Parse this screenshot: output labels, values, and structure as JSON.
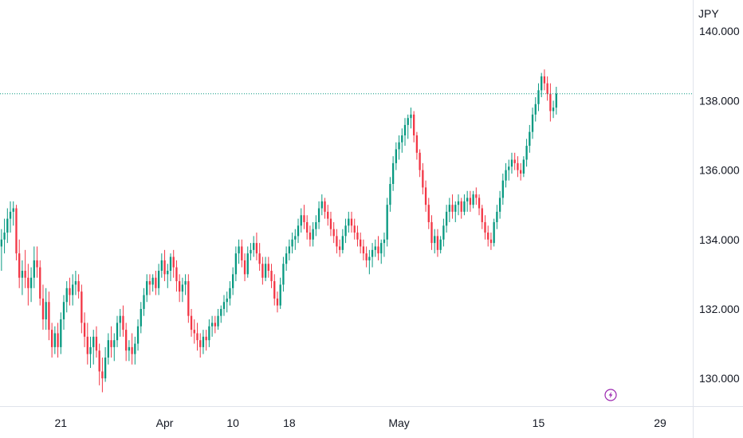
{
  "chart_data": {
    "type": "candlestick",
    "currency_label": "JPY",
    "y_ticks": [
      "140.000",
      "138.000",
      "136.000",
      "134.000",
      "132.000",
      "130.000"
    ],
    "y_tick_values": [
      140,
      138,
      136,
      134,
      132,
      130
    ],
    "ylim": [
      129.2,
      140.9
    ],
    "x_ticks": [
      "21",
      "Apr",
      "10",
      "18",
      "May",
      "15",
      "29"
    ],
    "x_tick_index": [
      20,
      55,
      78,
      97,
      134,
      181,
      222
    ],
    "x_index_range": [
      -0.5,
      233
    ],
    "last_price": 138.2,
    "grid": false,
    "colors": {
      "up": "#26a69a",
      "up_body": "#089981",
      "down": "#f23645",
      "last_price_line": "#089981",
      "axis_text": "#131722",
      "event_icon": "#9c27b0"
    },
    "candles": [
      [
        133.8,
        134.3,
        133.1,
        134.0
      ],
      [
        134.0,
        134.6,
        133.6,
        134.2
      ],
      [
        134.2,
        134.9,
        133.9,
        134.6
      ],
      [
        134.6,
        135.1,
        134.2,
        134.8
      ],
      [
        134.8,
        135.1,
        134.4,
        134.9
      ],
      [
        134.9,
        135.0,
        133.4,
        133.6
      ],
      [
        133.6,
        134.0,
        132.6,
        132.9
      ],
      [
        132.9,
        133.4,
        132.4,
        133.1
      ],
      [
        133.1,
        133.7,
        132.6,
        132.9
      ],
      [
        132.9,
        133.3,
        132.1,
        132.6
      ],
      [
        132.6,
        133.2,
        132.2,
        132.9
      ],
      [
        132.9,
        133.8,
        132.6,
        133.4
      ],
      [
        133.4,
        133.8,
        132.9,
        133.2
      ],
      [
        133.2,
        133.4,
        132.1,
        132.3
      ],
      [
        132.3,
        132.7,
        131.4,
        131.7
      ],
      [
        131.7,
        132.6,
        131.4,
        132.2
      ],
      [
        132.2,
        132.5,
        131.1,
        131.4
      ],
      [
        131.4,
        131.6,
        130.6,
        130.9
      ],
      [
        130.9,
        131.5,
        130.7,
        131.3
      ],
      [
        131.3,
        131.6,
        130.6,
        130.9
      ],
      [
        130.9,
        131.9,
        130.7,
        131.7
      ],
      [
        131.7,
        132.4,
        131.4,
        132.2
      ],
      [
        132.2,
        132.8,
        131.9,
        132.6
      ],
      [
        132.6,
        132.9,
        132.1,
        132.4
      ],
      [
        132.4,
        133.0,
        132.1,
        132.7
      ],
      [
        132.7,
        133.1,
        132.4,
        132.8
      ],
      [
        132.8,
        133.0,
        132.3,
        132.5
      ],
      [
        132.5,
        132.7,
        131.3,
        131.6
      ],
      [
        131.6,
        131.9,
        130.9,
        131.2
      ],
      [
        131.2,
        131.6,
        130.4,
        130.7
      ],
      [
        130.7,
        131.2,
        130.3,
        130.9
      ],
      [
        130.9,
        131.4,
        130.4,
        131.2
      ],
      [
        131.2,
        131.5,
        130.6,
        130.8
      ],
      [
        130.8,
        131.0,
        129.8,
        130.2
      ],
      [
        130.2,
        130.6,
        129.6,
        130.0
      ],
      [
        130.0,
        130.9,
        129.9,
        130.6
      ],
      [
        130.6,
        131.3,
        130.4,
        131.1
      ],
      [
        131.1,
        131.5,
        130.6,
        130.9
      ],
      [
        130.9,
        131.3,
        130.5,
        131.1
      ],
      [
        131.1,
        131.8,
        130.9,
        131.6
      ],
      [
        131.6,
        132.0,
        131.2,
        131.8
      ],
      [
        131.8,
        132.1,
        131.2,
        131.4
      ],
      [
        131.4,
        131.6,
        130.5,
        130.8
      ],
      [
        130.8,
        131.1,
        130.5,
        130.9
      ],
      [
        130.9,
        131.3,
        130.4,
        130.7
      ],
      [
        130.7,
        131.2,
        130.4,
        131.0
      ],
      [
        131.0,
        131.7,
        130.8,
        131.5
      ],
      [
        131.5,
        132.2,
        131.3,
        132.0
      ],
      [
        132.0,
        132.6,
        131.8,
        132.4
      ],
      [
        132.4,
        133.0,
        132.2,
        132.8
      ],
      [
        132.8,
        133.0,
        132.4,
        132.7
      ],
      [
        132.7,
        133.0,
        132.5,
        132.9
      ],
      [
        132.9,
        133.1,
        132.4,
        132.6
      ],
      [
        132.6,
        133.3,
        132.4,
        133.1
      ],
      [
        133.1,
        133.6,
        132.9,
        133.4
      ],
      [
        133.4,
        133.7,
        132.8,
        133.0
      ],
      [
        133.0,
        133.3,
        132.6,
        133.1
      ],
      [
        133.1,
        133.6,
        132.8,
        133.5
      ],
      [
        133.5,
        133.7,
        132.9,
        133.2
      ],
      [
        133.2,
        133.4,
        132.5,
        132.8
      ],
      [
        132.8,
        133.0,
        132.2,
        132.5
      ],
      [
        132.5,
        132.9,
        132.2,
        132.7
      ],
      [
        132.7,
        133.0,
        132.4,
        132.8
      ],
      [
        132.8,
        133.0,
        131.6,
        131.8
      ],
      [
        131.8,
        132.0,
        131.2,
        131.4
      ],
      [
        131.4,
        131.7,
        131.0,
        131.3
      ],
      [
        131.3,
        131.6,
        130.8,
        131.1
      ],
      [
        131.1,
        131.3,
        130.6,
        130.9
      ],
      [
        130.9,
        131.4,
        130.7,
        131.2
      ],
      [
        131.2,
        131.4,
        130.8,
        131.1
      ],
      [
        131.1,
        131.7,
        130.9,
        131.5
      ],
      [
        131.5,
        131.8,
        131.2,
        131.6
      ],
      [
        131.6,
        131.8,
        131.3,
        131.5
      ],
      [
        131.5,
        132.0,
        131.4,
        131.8
      ],
      [
        131.8,
        132.1,
        131.6,
        132.0
      ],
      [
        132.0,
        132.4,
        131.8,
        132.2
      ],
      [
        132.2,
        132.5,
        131.9,
        132.3
      ],
      [
        132.3,
        132.8,
        132.1,
        132.6
      ],
      [
        132.6,
        133.2,
        132.4,
        133.0
      ],
      [
        133.0,
        133.8,
        132.8,
        133.6
      ],
      [
        133.6,
        134.0,
        133.3,
        133.8
      ],
      [
        133.8,
        134.0,
        133.2,
        133.4
      ],
      [
        133.4,
        133.6,
        132.8,
        133.0
      ],
      [
        133.0,
        133.8,
        132.9,
        133.6
      ],
      [
        133.6,
        133.9,
        133.4,
        133.7
      ],
      [
        133.7,
        134.1,
        133.5,
        133.9
      ],
      [
        133.9,
        134.2,
        133.4,
        133.6
      ],
      [
        133.6,
        133.9,
        133.1,
        133.3
      ],
      [
        133.3,
        133.5,
        132.7,
        132.9
      ],
      [
        132.9,
        133.5,
        132.8,
        133.3
      ],
      [
        133.3,
        133.5,
        132.9,
        133.1
      ],
      [
        133.1,
        133.3,
        132.6,
        132.8
      ],
      [
        132.8,
        133.0,
        132.1,
        132.3
      ],
      [
        132.3,
        132.5,
        131.9,
        132.1
      ],
      [
        132.1,
        132.9,
        132.0,
        132.7
      ],
      [
        132.7,
        133.5,
        132.5,
        133.3
      ],
      [
        133.3,
        133.8,
        133.1,
        133.6
      ],
      [
        133.6,
        134.0,
        133.4,
        133.8
      ],
      [
        133.8,
        134.2,
        133.6,
        134.0
      ],
      [
        134.0,
        134.3,
        133.7,
        134.1
      ],
      [
        134.1,
        134.6,
        133.9,
        134.4
      ],
      [
        134.4,
        134.9,
        134.2,
        134.7
      ],
      [
        134.7,
        135.0,
        134.3,
        134.5
      ],
      [
        134.5,
        134.7,
        134.0,
        134.2
      ],
      [
        134.2,
        134.4,
        133.8,
        134.0
      ],
      [
        134.0,
        134.5,
        133.8,
        134.3
      ],
      [
        134.3,
        134.7,
        134.1,
        134.5
      ],
      [
        134.5,
        135.1,
        134.3,
        134.9
      ],
      [
        134.9,
        135.3,
        134.7,
        135.1
      ],
      [
        135.1,
        135.2,
        134.6,
        134.8
      ],
      [
        134.8,
        135.0,
        134.4,
        134.6
      ],
      [
        134.6,
        134.8,
        134.1,
        134.3
      ],
      [
        134.3,
        134.5,
        133.9,
        134.1
      ],
      [
        134.1,
        134.3,
        133.6,
        133.8
      ],
      [
        133.8,
        134.0,
        133.5,
        133.7
      ],
      [
        133.7,
        134.3,
        133.6,
        134.1
      ],
      [
        134.1,
        134.6,
        133.9,
        134.4
      ],
      [
        134.4,
        134.8,
        134.2,
        134.6
      ],
      [
        134.6,
        134.8,
        134.2,
        134.4
      ],
      [
        134.4,
        134.6,
        134.0,
        134.2
      ],
      [
        134.2,
        134.4,
        133.8,
        134.0
      ],
      [
        134.0,
        134.2,
        133.6,
        133.8
      ],
      [
        133.8,
        134.0,
        133.4,
        133.6
      ],
      [
        133.6,
        133.8,
        133.2,
        133.4
      ],
      [
        133.4,
        133.7,
        133.0,
        133.5
      ],
      [
        133.5,
        133.9,
        133.2,
        133.7
      ],
      [
        133.7,
        134.0,
        133.5,
        133.8
      ],
      [
        133.8,
        134.1,
        133.4,
        133.6
      ],
      [
        133.6,
        134.0,
        133.3,
        133.9
      ],
      [
        133.9,
        134.2,
        133.5,
        134.0
      ],
      [
        134.0,
        135.2,
        133.8,
        135.0
      ],
      [
        135.0,
        135.8,
        134.8,
        135.6
      ],
      [
        135.6,
        136.4,
        135.4,
        136.2
      ],
      [
        136.2,
        136.8,
        136.0,
        136.6
      ],
      [
        136.6,
        137.0,
        136.3,
        136.8
      ],
      [
        136.8,
        137.2,
        136.5,
        137.0
      ],
      [
        137.0,
        137.5,
        136.7,
        137.3
      ],
      [
        137.3,
        137.6,
        136.9,
        137.5
      ],
      [
        137.5,
        137.8,
        137.2,
        137.6
      ],
      [
        137.6,
        137.7,
        136.8,
        137.0
      ],
      [
        137.0,
        137.1,
        136.3,
        136.5
      ],
      [
        136.5,
        136.6,
        135.8,
        136.0
      ],
      [
        136.0,
        136.2,
        135.3,
        135.5
      ],
      [
        135.5,
        135.7,
        134.8,
        135.0
      ],
      [
        135.0,
        135.2,
        134.3,
        134.5
      ],
      [
        134.5,
        134.7,
        133.7,
        133.9
      ],
      [
        133.9,
        134.3,
        133.6,
        134.1
      ],
      [
        134.1,
        134.3,
        133.5,
        133.7
      ],
      [
        133.7,
        134.1,
        133.6,
        134.0
      ],
      [
        134.0,
        134.6,
        133.8,
        134.4
      ],
      [
        134.4,
        135.0,
        134.2,
        134.8
      ],
      [
        134.8,
        135.2,
        134.5,
        135.0
      ],
      [
        135.0,
        135.3,
        134.6,
        134.8
      ],
      [
        134.8,
        135.1,
        134.5,
        135.0
      ],
      [
        135.0,
        135.3,
        134.7,
        135.1
      ],
      [
        135.1,
        135.2,
        134.6,
        134.8
      ],
      [
        134.8,
        135.3,
        134.7,
        135.1
      ],
      [
        135.1,
        135.4,
        134.8,
        135.2
      ],
      [
        135.2,
        135.4,
        134.8,
        135.0
      ],
      [
        135.0,
        135.4,
        134.9,
        135.3
      ],
      [
        135.3,
        135.5,
        135.0,
        135.2
      ],
      [
        135.2,
        135.3,
        134.7,
        134.9
      ],
      [
        134.9,
        135.0,
        134.3,
        134.5
      ],
      [
        134.5,
        134.7,
        134.0,
        134.2
      ],
      [
        134.2,
        134.4,
        133.8,
        134.0
      ],
      [
        134.0,
        134.2,
        133.7,
        133.9
      ],
      [
        133.9,
        134.6,
        133.8,
        134.5
      ],
      [
        134.5,
        135.0,
        134.3,
        134.8
      ],
      [
        134.8,
        135.4,
        134.6,
        135.2
      ],
      [
        135.2,
        135.9,
        135.0,
        135.7
      ],
      [
        135.7,
        136.2,
        135.5,
        136.0
      ],
      [
        136.0,
        136.3,
        135.7,
        136.1
      ],
      [
        136.1,
        136.5,
        135.9,
        136.3
      ],
      [
        136.3,
        136.5,
        136.0,
        136.2
      ],
      [
        136.2,
        136.4,
        135.8,
        136.0
      ],
      [
        136.0,
        136.2,
        135.7,
        135.9
      ],
      [
        135.9,
        136.4,
        135.8,
        136.3
      ],
      [
        136.3,
        136.9,
        136.1,
        136.7
      ],
      [
        136.7,
        137.3,
        136.5,
        137.1
      ],
      [
        137.1,
        137.8,
        136.9,
        137.6
      ],
      [
        137.6,
        138.1,
        137.4,
        137.9
      ],
      [
        137.9,
        138.5,
        137.7,
        138.3
      ],
      [
        138.3,
        138.8,
        138.1,
        138.7
      ],
      [
        138.7,
        138.9,
        138.3,
        138.5
      ],
      [
        138.5,
        138.7,
        138.0,
        138.2
      ],
      [
        138.2,
        138.5,
        137.4,
        137.7
      ],
      [
        137.7,
        138.0,
        137.5,
        137.8
      ],
      [
        137.8,
        138.4,
        137.6,
        138.2
      ]
    ]
  },
  "event_icon": "lightning-icon"
}
